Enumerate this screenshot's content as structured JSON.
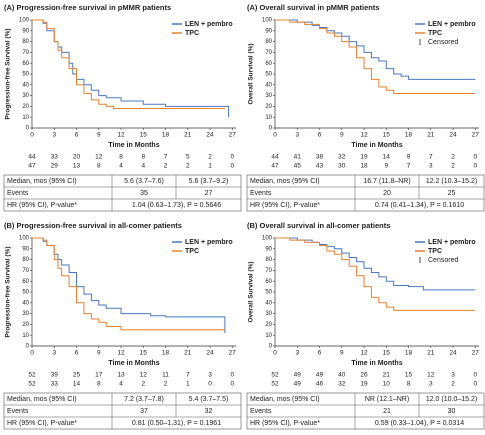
{
  "chart_data": [
    {
      "type": "step",
      "title": "(A) Progression-free survival in pMMR patients",
      "ylabel": "Progression-free Survival (%)",
      "xlabel": "Time in Months",
      "xlim": [
        0,
        27.5
      ],
      "xticks": [
        0,
        3,
        6,
        9,
        12,
        15,
        18,
        21,
        24,
        27
      ],
      "ylim": [
        0,
        100
      ],
      "yticks": [
        0,
        10,
        20,
        30,
        40,
        50,
        60,
        70,
        80,
        90,
        100
      ],
      "series": [
        {
          "name": "LEN + pembro",
          "color": "#4a78c2",
          "x": [
            0,
            1.5,
            2,
            3,
            3.5,
            4,
            5,
            5.5,
            6,
            7,
            8,
            9,
            10,
            12,
            15,
            18,
            21,
            24,
            26,
            26.5
          ],
          "values": [
            100,
            97,
            90,
            80,
            75,
            70,
            60,
            50,
            45,
            40,
            35,
            30,
            28,
            25,
            22,
            20,
            20,
            20,
            20,
            10
          ],
          "at_risk": [
            44,
            33,
            20,
            12,
            8,
            8,
            7,
            5,
            2,
            0
          ]
        },
        {
          "name": "TPC",
          "color": "#e8822e",
          "x": [
            0,
            1.5,
            2,
            3,
            3.5,
            4,
            5,
            6,
            7,
            8,
            9,
            10,
            11,
            13,
            24,
            26
          ],
          "values": [
            100,
            98,
            92,
            80,
            72,
            65,
            55,
            40,
            32,
            26,
            22,
            20,
            18,
            18,
            18,
            18
          ],
          "at_risk": [
            47,
            29,
            13,
            8,
            4,
            4,
            2,
            2,
            1,
            0
          ]
        }
      ],
      "table": {
        "rows": [
          [
            "Median, mos (95% CI)",
            "5.6 (3.7–7.6)",
            "5.6 (3.7–9.2)"
          ],
          [
            "Events",
            "35",
            "27"
          ]
        ],
        "hr": [
          "HR (95% CI), P-value*",
          "1.04 (0.63–1.73), P = 0.5646"
        ]
      }
    },
    {
      "type": "step",
      "title": "(A) Overall survival in pMMR patients",
      "ylabel": "Overall Survival (%)",
      "xlabel": "Time in Months",
      "censored_label": "Censored",
      "xlim": [
        0,
        27.5
      ],
      "xticks": [
        0,
        3,
        6,
        9,
        12,
        15,
        18,
        21,
        24,
        27
      ],
      "ylim": [
        0,
        100
      ],
      "yticks": [
        0,
        10,
        20,
        30,
        40,
        50,
        60,
        70,
        80,
        90,
        100
      ],
      "series": [
        {
          "name": "LEN + pembro",
          "color": "#4a78c2",
          "x": [
            0,
            3,
            5,
            6,
            7,
            8,
            9,
            10,
            11,
            12,
            13,
            14,
            15,
            16,
            17,
            18,
            24,
            27
          ],
          "values": [
            100,
            98,
            95,
            93,
            90,
            88,
            85,
            80,
            76,
            70,
            65,
            62,
            55,
            50,
            48,
            45,
            45,
            45
          ],
          "at_risk": [
            44,
            41,
            38,
            32,
            19,
            14,
            9,
            7,
            2,
            0
          ]
        },
        {
          "name": "TPC",
          "color": "#e8822e",
          "x": [
            0,
            2,
            4,
            6,
            7,
            8,
            9,
            10,
            11,
            12,
            13,
            14,
            15,
            16,
            18,
            22,
            27
          ],
          "values": [
            100,
            98,
            96,
            92,
            88,
            85,
            80,
            75,
            65,
            55,
            45,
            38,
            35,
            32,
            32,
            32,
            32
          ],
          "at_risk": [
            47,
            45,
            43,
            30,
            18,
            9,
            7,
            3,
            2,
            0
          ]
        }
      ],
      "table": {
        "rows": [
          [
            "Median, mos (95% CI)",
            "16.7 (11.8–NR)",
            "12.2 (10.3–15.2)"
          ],
          [
            "Events",
            "20",
            "25"
          ]
        ],
        "hr": [
          "HR (95% CI), P-value*",
          "0.74 (0.41–1.34), P = 0.1610"
        ]
      }
    },
    {
      "type": "step",
      "title": "(B) Progression-free survival in all-comer patients",
      "ylabel": "Progression-free Survival (%)",
      "xlabel": "Time in Months",
      "xlim": [
        0,
        27.5
      ],
      "xticks": [
        0,
        3,
        6,
        9,
        12,
        15,
        18,
        21,
        24,
        27
      ],
      "ylim": [
        0,
        100
      ],
      "yticks": [
        0,
        10,
        20,
        30,
        40,
        50,
        60,
        70,
        80,
        90,
        100
      ],
      "series": [
        {
          "name": "LEN + pembro",
          "color": "#4a78c2",
          "x": [
            0,
            1.5,
            2,
            3,
            3.5,
            4,
            5,
            6,
            7,
            8,
            9,
            10,
            12,
            14,
            16,
            18,
            20,
            24,
            26
          ],
          "values": [
            100,
            97,
            93,
            85,
            80,
            75,
            68,
            55,
            48,
            42,
            38,
            35,
            30,
            30,
            28,
            27,
            27,
            27,
            12
          ],
          "at_risk": [
            52,
            39,
            25,
            17,
            13,
            12,
            11,
            7,
            3,
            0
          ]
        },
        {
          "name": "TPC",
          "color": "#e8822e",
          "x": [
            0,
            1.5,
            2,
            3,
            3.5,
            4,
            5,
            6,
            7,
            8,
            9,
            10,
            11,
            12,
            24,
            26
          ],
          "values": [
            100,
            98,
            93,
            80,
            72,
            65,
            55,
            40,
            30,
            25,
            22,
            18,
            18,
            15,
            15,
            15
          ],
          "at_risk": [
            52,
            33,
            14,
            8,
            4,
            2,
            2,
            1,
            0,
            0
          ]
        }
      ],
      "table": {
        "rows": [
          [
            "Median, mos (95% CI)",
            "7.2 (3.7–7.8)",
            "5.4 (3.7–7.5)"
          ],
          [
            "Events",
            "37",
            "32"
          ]
        ],
        "hr": [
          "HR (95% CI), P-value*",
          "0.81 (0.50–1.31), P = 0.1961"
        ]
      }
    },
    {
      "type": "step",
      "title": "(B) Overall survival in all-comer patients",
      "ylabel": "Overall Survival (%)",
      "xlabel": "Time in Months",
      "censored_label": "Censored",
      "xlim": [
        0,
        27.5
      ],
      "xticks": [
        0,
        3,
        6,
        9,
        12,
        15,
        18,
        21,
        24,
        27
      ],
      "ylim": [
        0,
        100
      ],
      "yticks": [
        0,
        10,
        20,
        30,
        40,
        50,
        60,
        70,
        80,
        90,
        100
      ],
      "series": [
        {
          "name": "LEN + pembro",
          "color": "#4a78c2",
          "x": [
            0,
            3,
            5,
            6,
            7,
            8,
            9,
            10,
            11,
            12,
            13,
            14,
            15,
            16,
            18,
            20,
            27
          ],
          "values": [
            100,
            98,
            96,
            94,
            92,
            90,
            86,
            82,
            78,
            72,
            68,
            64,
            60,
            56,
            55,
            52,
            52
          ],
          "at_risk": [
            52,
            49,
            49,
            40,
            26,
            21,
            15,
            12,
            3,
            0
          ]
        },
        {
          "name": "TPC",
          "color": "#e8822e",
          "x": [
            0,
            2,
            4,
            6,
            7,
            8,
            9,
            10,
            11,
            12,
            13,
            14,
            15,
            16,
            18,
            27
          ],
          "values": [
            100,
            98,
            96,
            93,
            88,
            85,
            80,
            74,
            65,
            55,
            45,
            40,
            36,
            33,
            33,
            33
          ],
          "at_risk": [
            52,
            49,
            46,
            32,
            19,
            10,
            8,
            3,
            2,
            0
          ]
        }
      ],
      "table": {
        "rows": [
          [
            "Median, mos (95% CI)",
            "NR (12.1–NR)",
            "12.0 (10.0–15.2)"
          ],
          [
            "Events",
            "21",
            "30"
          ]
        ],
        "hr": [
          "HR (95% CI), P-value*",
          "0.59 (0.33–1.04), P = 0.0314"
        ]
      }
    }
  ]
}
